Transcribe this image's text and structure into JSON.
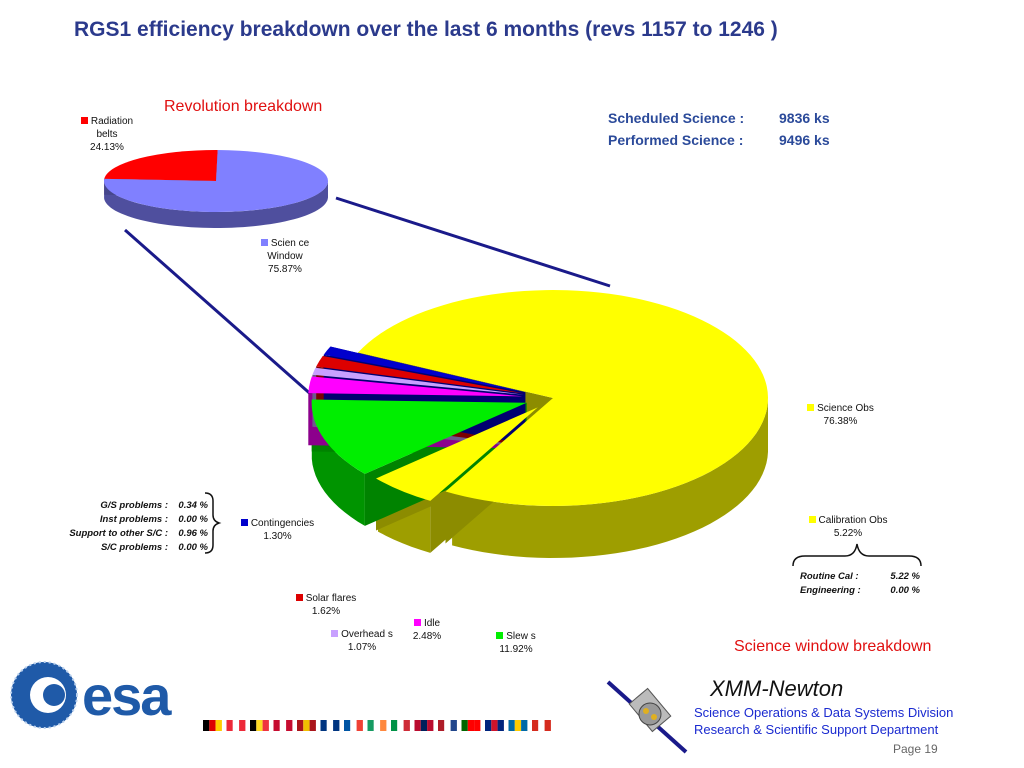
{
  "title": "RGS1 efficiency breakdown over the last 6 months (revs  1157 to 1246 )",
  "revolution_title": "Revolution breakdown",
  "science_window_title": "Science window breakdown",
  "scheduled": {
    "label": "Scheduled Science :",
    "value": "9836  ks"
  },
  "performed": {
    "label": "Performed Science :",
    "value": "9496  ks"
  },
  "labels": {
    "radiation": [
      "Radiation",
      "belts",
      "24.13%"
    ],
    "science_window": [
      "Scien ce",
      "Window",
      "75.87%"
    ],
    "science_obs": [
      "Science Obs",
      "76.38%"
    ],
    "calibration_obs": [
      "Calibration Obs",
      "5.22%"
    ],
    "contingencies": [
      "Contingencies",
      "1.30%"
    ],
    "solar_flares": [
      "Solar flares",
      "1.62%"
    ],
    "idle": [
      "Idle",
      "2.48%"
    ],
    "overheads": [
      "Overhead s",
      "1.07%"
    ],
    "slews": [
      "Slew s",
      "11.92%"
    ]
  },
  "contingency_details": [
    {
      "label": "G/S problems :",
      "value": "0.34  %"
    },
    {
      "label": "Inst problems :",
      "value": "0.00  %"
    },
    {
      "label": "Support to other S/C :",
      "value": "0.96  %"
    },
    {
      "label": "S/C problems :",
      "value": "0.00  %"
    }
  ],
  "calibration_details": [
    {
      "label": "Routine Cal :",
      "value": "5.22 %"
    },
    {
      "label": "Engineering :",
      "value": "0.00 %"
    }
  ],
  "footer": {
    "logo": "esa",
    "mission": "XMM-Newton",
    "dept1": "Science Operations & Data Systems Division",
    "dept2": "Research & Scientific Support Department",
    "page": "Page 19"
  },
  "colors": {
    "radiation": "#ff0000",
    "science_window": "#8080ff",
    "science_obs": "#ffff00",
    "calibration": "#ffff00",
    "contingencies": "#0000cc",
    "solar_flares": "#dd0000",
    "overheads": "#c8a0ff",
    "idle": "#ff00ff",
    "slews": "#00ee00"
  },
  "chart_data": [
    {
      "type": "pie",
      "title": "Revolution breakdown",
      "categories": [
        "Radiation belts",
        "Science Window"
      ],
      "values": [
        24.13,
        75.87
      ]
    },
    {
      "type": "pie",
      "title": "Science window breakdown",
      "categories": [
        "Science Obs",
        "Calibration Obs",
        "Slews",
        "Idle",
        "Overheads",
        "Solar flares",
        "Contingencies"
      ],
      "values": [
        76.38,
        5.22,
        11.92,
        2.48,
        1.07,
        1.62,
        1.3
      ]
    }
  ]
}
